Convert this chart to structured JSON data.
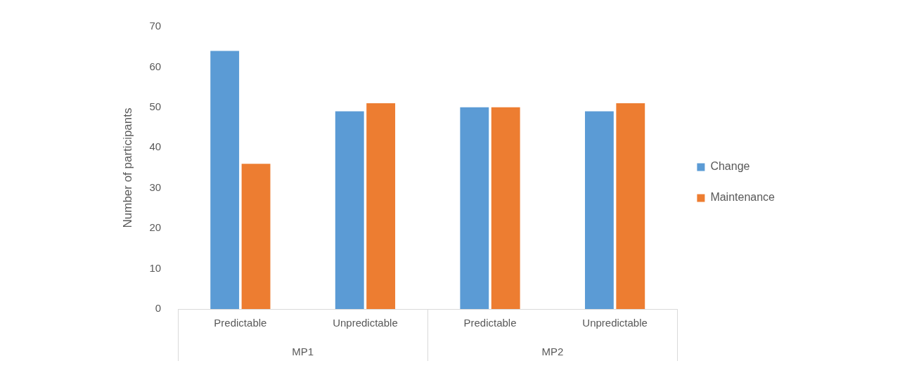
{
  "chart_data": {
    "type": "bar",
    "ylabel": "Number of participants",
    "categories": [
      "Predictable",
      "Unpredictable",
      "Predictable",
      "Unpredictable"
    ],
    "annotations": [
      "MP1",
      "MP2"
    ],
    "series": [
      {
        "name": "Change",
        "color": "#5b9bd5",
        "values": [
          64,
          49,
          50,
          49
        ]
      },
      {
        "name": "Maintenance",
        "color": "#ed7d31",
        "values": [
          36,
          51,
          50,
          51
        ]
      }
    ],
    "ylim": [
      0,
      70
    ],
    "yticks": [
      0,
      10,
      20,
      30,
      40,
      50,
      60,
      70
    ],
    "grid": false,
    "legend": "right"
  }
}
